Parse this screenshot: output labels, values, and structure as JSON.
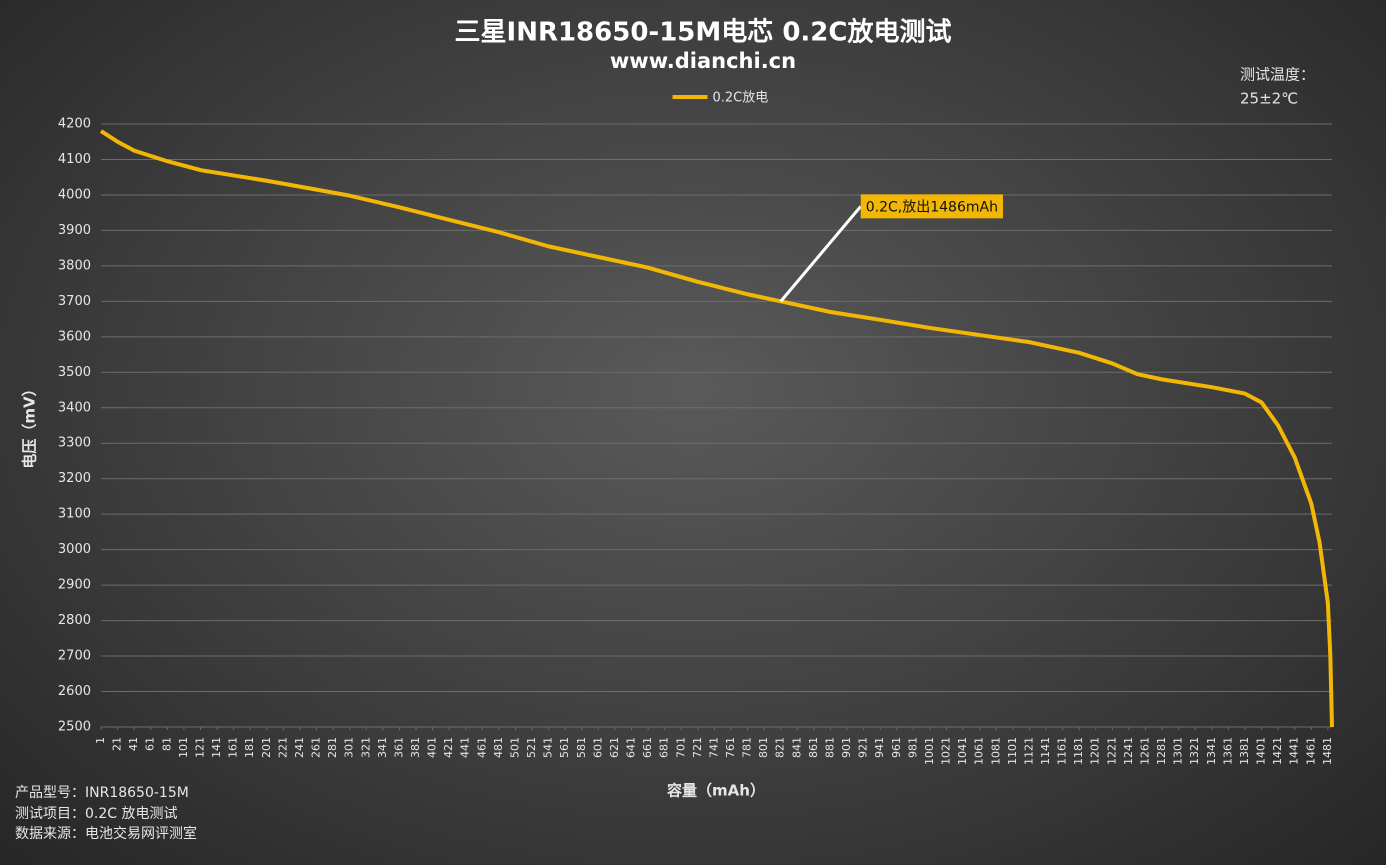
{
  "chart_data": {
    "type": "line",
    "title": "三星INR18650-15M电芯 0.2C放电测试",
    "subtitle": "www.dianchi.cn",
    "x_label": "容量（mAh）",
    "y_label": "电压（mV）",
    "notes": [
      "测试温度：",
      "25±2℃"
    ],
    "footer": [
      "产品型号：INR18650-15M",
      "测试项目：0.2C 放电测试",
      "数据来源：电池交易网评测室"
    ],
    "x": [
      1,
      21,
      41,
      81,
      121,
      161,
      201,
      261,
      301,
      361,
      421,
      481,
      541,
      601,
      661,
      721,
      781,
      821,
      881,
      941,
      1001,
      1061,
      1121,
      1181,
      1221,
      1251,
      1281,
      1341,
      1381,
      1401,
      1421,
      1441,
      1461,
      1471,
      1481,
      1484,
      1486
    ],
    "series": [
      {
        "name": "0.2C放电",
        "color": "#f2b705",
        "values": [
          4180,
          4150,
          4125,
          4095,
          4070,
          4055,
          4040,
          4015,
          3998,
          3965,
          3930,
          3895,
          3855,
          3825,
          3795,
          3755,
          3720,
          3700,
          3670,
          3648,
          3625,
          3605,
          3585,
          3555,
          3525,
          3495,
          3480,
          3458,
          3440,
          3415,
          3350,
          3260,
          3130,
          3020,
          2850,
          2700,
          2500
        ]
      }
    ],
    "annotations": [
      {
        "text": "0.2C,放出1486mAh",
        "x": 821,
        "y": 3700
      }
    ],
    "xlim": [
      1,
      1486
    ],
    "xticks": [
      1,
      21,
      41,
      61,
      81,
      101,
      121,
      141,
      161,
      181,
      201,
      221,
      241,
      261,
      281,
      301,
      321,
      341,
      361,
      381,
      401,
      421,
      441,
      461,
      481,
      501,
      521,
      541,
      561,
      581,
      601,
      621,
      641,
      661,
      681,
      701,
      721,
      741,
      761,
      781,
      801,
      821,
      841,
      861,
      881,
      901,
      921,
      941,
      961,
      981,
      1001,
      1021,
      1041,
      1061,
      1081,
      1101,
      1121,
      1141,
      1161,
      1181,
      1201,
      1221,
      1241,
      1261,
      1281,
      1301,
      1321,
      1341,
      1361,
      1381,
      1401,
      1421,
      1441,
      1461,
      1481
    ],
    "ylim": [
      2500,
      4200
    ],
    "yticks": [
      2500,
      2600,
      2700,
      2800,
      2900,
      3000,
      3100,
      3200,
      3300,
      3400,
      3500,
      3600,
      3700,
      3800,
      3900,
      4000,
      4100,
      4200
    ],
    "grid": true
  }
}
